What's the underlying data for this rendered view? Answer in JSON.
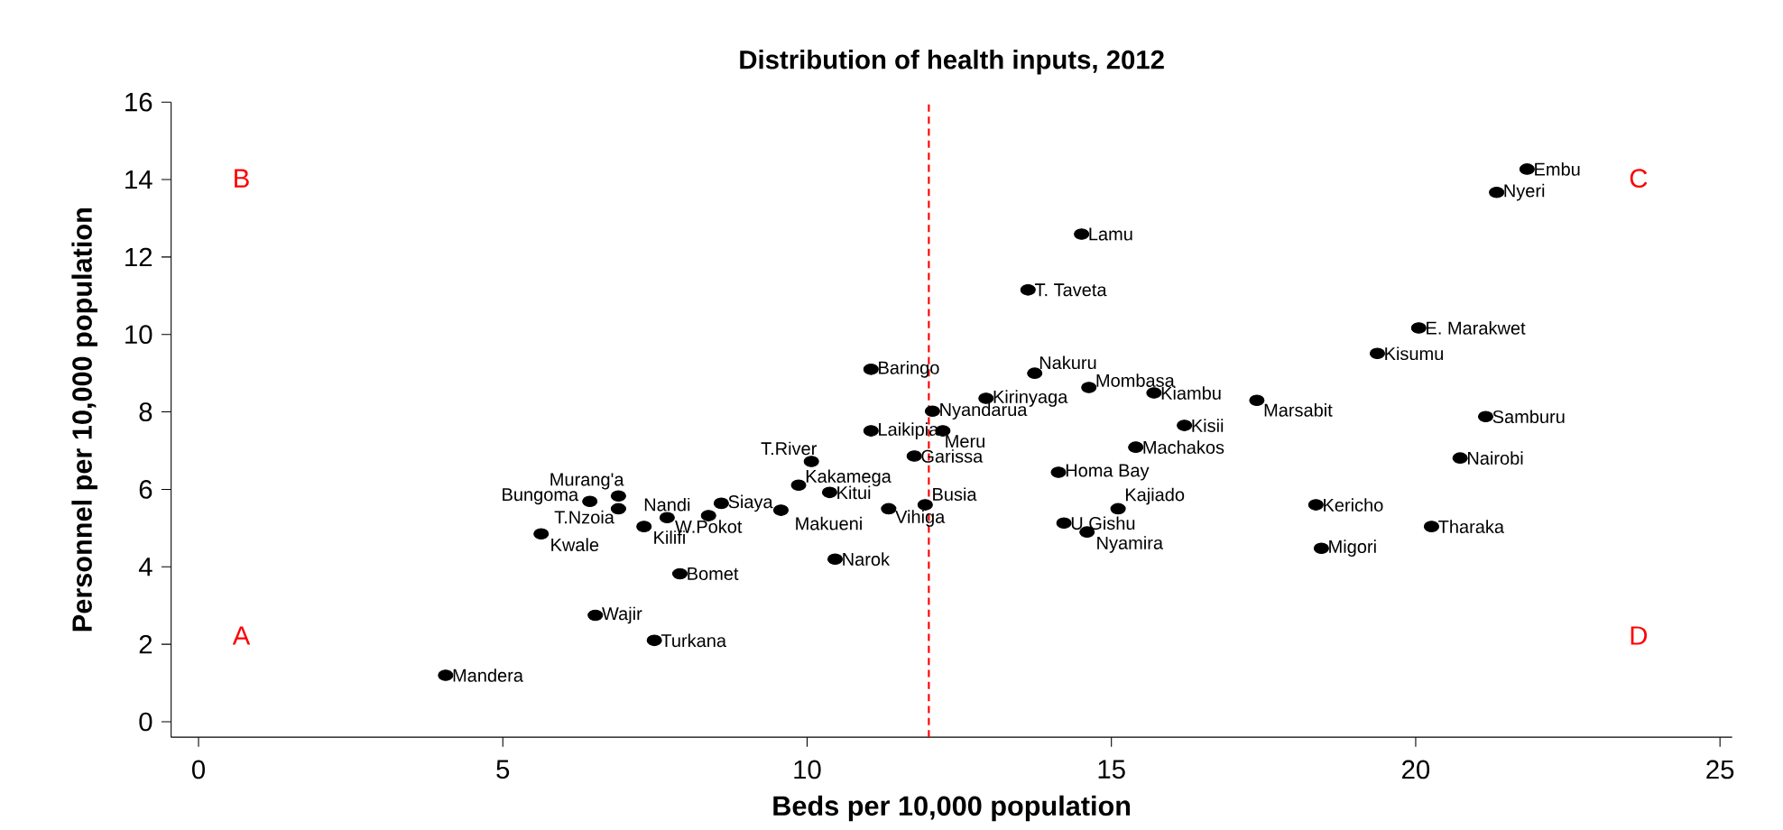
{
  "chart_data": {
    "type": "scatter",
    "title": "Distribution of health inputs, 2012",
    "xlabel": "Beds per 10,000 population",
    "ylabel": "Personnel per 10,000 population",
    "xlim": [
      -0.45,
      25.2
    ],
    "ylim": [
      -0.4,
      16
    ],
    "xticks": [
      0,
      5,
      10,
      15,
      20,
      25
    ],
    "yticks": [
      0,
      2,
      4,
      6,
      8,
      10,
      12,
      14,
      16
    ],
    "marker": "circle",
    "series": [
      {
        "color": "#000000",
        "x": [
          21.83,
          21.33,
          14.51,
          13.63,
          20.05,
          19.37,
          11.05,
          13.74,
          14.63,
          15.7,
          17.39,
          12.94,
          21.15,
          12.06,
          16.2,
          11.05,
          12.23,
          15.4,
          20.73,
          11.76,
          10.07,
          14.13,
          9.86,
          10.37,
          15.11,
          8.59,
          6.9,
          6.43,
          6.9,
          7.7,
          8.38,
          9.57,
          11.34,
          11.94,
          7.32,
          5.63,
          18.36,
          14.22,
          20.26,
          14.6,
          18.45,
          7.91,
          10.46,
          6.52,
          7.49,
          4.06
        ],
        "values": [
          14.27,
          13.67,
          12.59,
          11.15,
          10.17,
          9.51,
          9.1,
          9.0,
          8.63,
          8.49,
          8.3,
          8.35,
          7.88,
          8.02,
          7.65,
          7.51,
          7.51,
          7.09,
          6.81,
          6.86,
          6.72,
          6.44,
          6.11,
          5.92,
          5.5,
          5.64,
          5.83,
          5.69,
          5.5,
          5.27,
          5.32,
          5.46,
          5.5,
          5.6,
          5.04,
          4.85,
          5.6,
          5.13,
          5.04,
          4.9,
          4.48,
          3.82,
          4.2,
          2.75,
          2.1,
          1.2
        ]
      }
    ],
    "ref_lines": [
      {
        "axis": "x",
        "value": 12,
        "color": "#ff0000",
        "line_style": "dashed"
      }
    ],
    "annotations": [
      {
        "text": "Embu",
        "x": 21.83,
        "y": 14.27
      },
      {
        "text": "Nyeri",
        "x": 21.33,
        "y": 13.67
      },
      {
        "text": "Lamu",
        "x": 14.51,
        "y": 12.59
      },
      {
        "text": "T. Taveta",
        "x": 13.63,
        "y": 11.15
      },
      {
        "text": "E. Marakwet",
        "x": 20.05,
        "y": 10.17
      },
      {
        "text": "Kisumu",
        "x": 19.37,
        "y": 9.51
      },
      {
        "text": "Baringo",
        "x": 11.05,
        "y": 9.1
      },
      {
        "text": "Nakuru",
        "x": 13.74,
        "y": 9.0
      },
      {
        "text": "Mombasa",
        "x": 14.63,
        "y": 8.63
      },
      {
        "text": "Kiambu",
        "x": 15.7,
        "y": 8.49
      },
      {
        "text": "Marsabit",
        "x": 17.39,
        "y": 8.3
      },
      {
        "text": "Kirinyaga",
        "x": 12.94,
        "y": 8.35
      },
      {
        "text": "Samburu",
        "x": 21.15,
        "y": 7.88
      },
      {
        "text": "Nyandarua",
        "x": 12.06,
        "y": 8.02
      },
      {
        "text": "Kisii",
        "x": 16.2,
        "y": 7.65
      },
      {
        "text": "Laikipia",
        "x": 11.05,
        "y": 7.51
      },
      {
        "text": "Meru",
        "x": 12.23,
        "y": 7.51
      },
      {
        "text": "Machakos",
        "x": 15.4,
        "y": 7.09
      },
      {
        "text": "Nairobi",
        "x": 20.73,
        "y": 6.81
      },
      {
        "text": "Garissa",
        "x": 11.76,
        "y": 6.86
      },
      {
        "text": "T.River",
        "x": 10.07,
        "y": 6.72
      },
      {
        "text": "Homa Bay",
        "x": 14.13,
        "y": 6.44
      },
      {
        "text": "Kakamega",
        "x": 9.86,
        "y": 6.11
      },
      {
        "text": "Kitui",
        "x": 10.37,
        "y": 5.92
      },
      {
        "text": "Kajiado",
        "x": 15.11,
        "y": 5.5
      },
      {
        "text": "Siaya",
        "x": 8.59,
        "y": 5.64
      },
      {
        "text": "Murang'a",
        "x": 6.9,
        "y": 5.83
      },
      {
        "text": "Bungoma",
        "x": 6.43,
        "y": 5.69
      },
      {
        "text": "T.Nzoia",
        "x": 6.9,
        "y": 5.5
      },
      {
        "text": "Nandi",
        "x": 7.7,
        "y": 5.27
      },
      {
        "text": "W.Pokot",
        "x": 8.38,
        "y": 5.32
      },
      {
        "text": "Makueni",
        "x": 9.57,
        "y": 5.46
      },
      {
        "text": "Vihiga",
        "x": 11.34,
        "y": 5.5
      },
      {
        "text": "Busia",
        "x": 11.94,
        "y": 5.6
      },
      {
        "text": "Kilifi",
        "x": 7.32,
        "y": 5.04
      },
      {
        "text": "Kwale",
        "x": 5.63,
        "y": 4.85
      },
      {
        "text": "Kericho",
        "x": 18.36,
        "y": 5.6
      },
      {
        "text": "U.Gishu",
        "x": 14.22,
        "y": 5.13
      },
      {
        "text": "Tharaka",
        "x": 20.26,
        "y": 5.04
      },
      {
        "text": "Nyamira",
        "x": 14.6,
        "y": 4.9
      },
      {
        "text": "Migori",
        "x": 18.45,
        "y": 4.48
      },
      {
        "text": "Bomet",
        "x": 7.91,
        "y": 3.82
      },
      {
        "text": "Narok",
        "x": 10.46,
        "y": 4.2
      },
      {
        "text": "Wajir",
        "x": 6.52,
        "y": 2.75
      },
      {
        "text": "Turkana",
        "x": 7.49,
        "y": 2.1
      },
      {
        "text": "Mandera",
        "x": 4.06,
        "y": 1.2
      },
      "A",
      "B",
      "C",
      "D"
    ]
  }
}
